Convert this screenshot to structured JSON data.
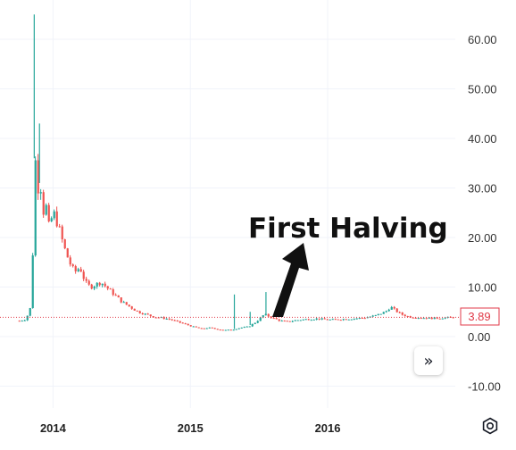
{
  "chart_data": {
    "type": "candlestick",
    "title": "",
    "xlabel": "",
    "ylabel": "",
    "x_ticks": [
      "2014",
      "2015",
      "2016"
    ],
    "y_ticks": [
      "60.00",
      "50.00",
      "40.00",
      "30.00",
      "20.00",
      "10.00",
      "0.00",
      "-10.00"
    ],
    "ylim": [
      -13,
      66
    ],
    "last_price": "3.89",
    "annotation": "First Halving",
    "colors": {
      "up": "#26a69a",
      "down": "#ef5350",
      "last_price": "#e03a48"
    },
    "series_close": [
      [
        "2013-10-01",
        3.2
      ],
      [
        "2013-10-15",
        3.4
      ],
      [
        "2013-10-29",
        5.0
      ],
      [
        "2013-11-05",
        15.0
      ],
      [
        "2013-11-12",
        36.0
      ],
      [
        "2013-11-19",
        30.0
      ],
      [
        "2013-11-26",
        31.0
      ],
      [
        "2013-12-03",
        25.0
      ],
      [
        "2013-12-10",
        27.0
      ],
      [
        "2013-12-17",
        22.0
      ],
      [
        "2013-12-31",
        25.0
      ],
      [
        "2014-01-14",
        22.0
      ],
      [
        "2014-01-28",
        18.0
      ],
      [
        "2014-02-11",
        15.0
      ],
      [
        "2014-02-25",
        13.0
      ],
      [
        "2014-03-11",
        14.0
      ],
      [
        "2014-03-25",
        11.0
      ],
      [
        "2014-04-08",
        10.0
      ],
      [
        "2014-04-22",
        10.5
      ],
      [
        "2014-05-06",
        11.0
      ],
      [
        "2014-05-20",
        10.0
      ],
      [
        "2014-06-10",
        8.5
      ],
      [
        "2014-07-01",
        7.0
      ],
      [
        "2014-07-22",
        6.0
      ],
      [
        "2014-08-12",
        5.0
      ],
      [
        "2014-09-02",
        4.5
      ],
      [
        "2014-09-23",
        4.0
      ],
      [
        "2014-10-14",
        3.8
      ],
      [
        "2014-11-04",
        3.5
      ],
      [
        "2014-11-25",
        3.0
      ],
      [
        "2014-12-16",
        2.5
      ],
      [
        "2015-01-06",
        2.0
      ],
      [
        "2015-01-27",
        1.6
      ],
      [
        "2015-02-17",
        1.8
      ],
      [
        "2015-03-10",
        1.5
      ],
      [
        "2015-03-31",
        1.3
      ],
      [
        "2015-04-21",
        1.4
      ],
      [
        "2015-05-12",
        1.8
      ],
      [
        "2015-06-02",
        2.0
      ],
      [
        "2015-06-23",
        3.0
      ],
      [
        "2015-07-14",
        4.5
      ],
      [
        "2015-08-04",
        3.8
      ],
      [
        "2015-08-25",
        3.2
      ],
      [
        "2015-09-15",
        3.0
      ],
      [
        "2015-10-06",
        3.3
      ],
      [
        "2015-11-03",
        3.5
      ],
      [
        "2015-12-01",
        3.6
      ],
      [
        "2016-01-05",
        3.4
      ],
      [
        "2016-02-02",
        3.5
      ],
      [
        "2016-03-01",
        3.6
      ],
      [
        "2016-04-05",
        3.8
      ],
      [
        "2016-05-03",
        4.2
      ],
      [
        "2016-05-31",
        5.0
      ],
      [
        "2016-06-14",
        6.0
      ],
      [
        "2016-06-28",
        5.2
      ],
      [
        "2016-07-12",
        4.5
      ],
      [
        "2016-08-02",
        4.0
      ],
      [
        "2016-09-06",
        3.8
      ],
      [
        "2016-10-04",
        3.7
      ],
      [
        "2016-11-01",
        3.8
      ],
      [
        "2016-11-29",
        3.89
      ]
    ],
    "spikes": [
      [
        "2013-11-12",
        65.0
      ],
      [
        "2013-11-26",
        43.0
      ],
      [
        "2015-04-28",
        8.5
      ],
      [
        "2015-07-21",
        9.0
      ],
      [
        "2015-06-09",
        5.0
      ]
    ]
  },
  "ui": {
    "scroll_button_icon": "double-chevron-right-icon",
    "settings_icon": "gear-icon"
  }
}
